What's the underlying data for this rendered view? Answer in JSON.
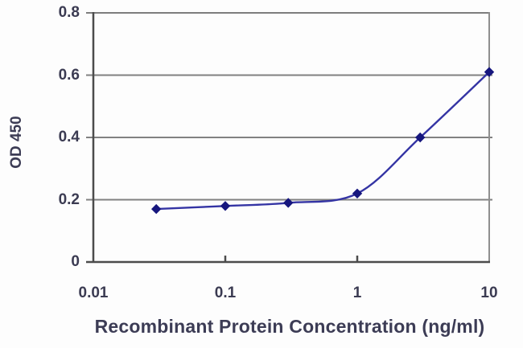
{
  "chart_data": {
    "type": "line",
    "title": "",
    "xlabel": "Recombinant Protein Concentration (ng/ml)",
    "ylabel": "OD 450",
    "x_scale": "log",
    "xlim": [
      0.01,
      10
    ],
    "ylim": [
      0,
      0.8
    ],
    "x_ticks": [
      0.01,
      0.1,
      1,
      10
    ],
    "x_tick_labels": [
      "0.01",
      "0.1",
      "1",
      "10"
    ],
    "y_ticks": [
      0,
      0.2,
      0.4,
      0.6,
      0.8
    ],
    "y_tick_labels": [
      "0",
      "0.2",
      "0.4",
      "0.6",
      "0.8"
    ],
    "grid": "horizontal",
    "legend": "none",
    "series": [
      {
        "name": "OD 450",
        "marker": "diamond",
        "smooth": true,
        "x": [
          0.03,
          0.1,
          0.3,
          1,
          3,
          10
        ],
        "y": [
          0.17,
          0.18,
          0.19,
          0.22,
          0.4,
          0.61
        ]
      }
    ],
    "colors": {
      "line": "#3434a4",
      "marker": "#17177e",
      "grid": "#818181",
      "axis_dark": "#4c4c4c",
      "border_top": "#7d7d7d",
      "border_right": "#8f8f8f",
      "text": "#3c3c55",
      "background": "#fdfdfd"
    }
  }
}
